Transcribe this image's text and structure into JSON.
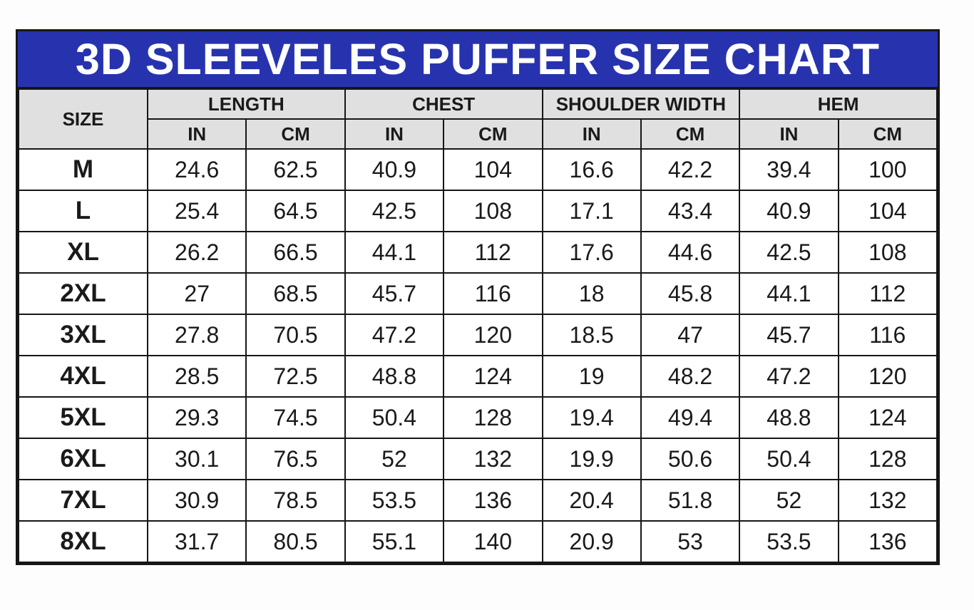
{
  "style": {
    "title_banner_bg": "#2733ae",
    "title_text_color": "#ffffff",
    "header_bg": "#e0e0e0",
    "border_color": "#161616",
    "page_bg": "#fdfdfd"
  },
  "chart_data": {
    "type": "table",
    "title": "3D SLEEVELES PUFFER SIZE CHART",
    "row_header": "SIZE",
    "column_groups": [
      "LENGTH",
      "CHEST",
      "SHOULDER WIDTH",
      "HEM"
    ],
    "unit_columns": [
      "IN",
      "CM"
    ],
    "rows": [
      {
        "size": "M",
        "values": [
          "24.6",
          "62.5",
          "40.9",
          "104",
          "16.6",
          "42.2",
          "39.4",
          "100"
        ]
      },
      {
        "size": "L",
        "values": [
          "25.4",
          "64.5",
          "42.5",
          "108",
          "17.1",
          "43.4",
          "40.9",
          "104"
        ]
      },
      {
        "size": "XL",
        "values": [
          "26.2",
          "66.5",
          "44.1",
          "112",
          "17.6",
          "44.6",
          "42.5",
          "108"
        ]
      },
      {
        "size": "2XL",
        "values": [
          "27",
          "68.5",
          "45.7",
          "116",
          "18",
          "45.8",
          "44.1",
          "112"
        ]
      },
      {
        "size": "3XL",
        "values": [
          "27.8",
          "70.5",
          "47.2",
          "120",
          "18.5",
          "47",
          "45.7",
          "116"
        ]
      },
      {
        "size": "4XL",
        "values": [
          "28.5",
          "72.5",
          "48.8",
          "124",
          "19",
          "48.2",
          "47.2",
          "120"
        ]
      },
      {
        "size": "5XL",
        "values": [
          "29.3",
          "74.5",
          "50.4",
          "128",
          "19.4",
          "49.4",
          "48.8",
          "124"
        ]
      },
      {
        "size": "6XL",
        "values": [
          "30.1",
          "76.5",
          "52",
          "132",
          "19.9",
          "50.6",
          "50.4",
          "128"
        ]
      },
      {
        "size": "7XL",
        "values": [
          "30.9",
          "78.5",
          "53.5",
          "136",
          "20.4",
          "51.8",
          "52",
          "132"
        ]
      },
      {
        "size": "8XL",
        "values": [
          "31.7",
          "80.5",
          "55.1",
          "140",
          "20.9",
          "53",
          "53.5",
          "136"
        ]
      }
    ]
  }
}
